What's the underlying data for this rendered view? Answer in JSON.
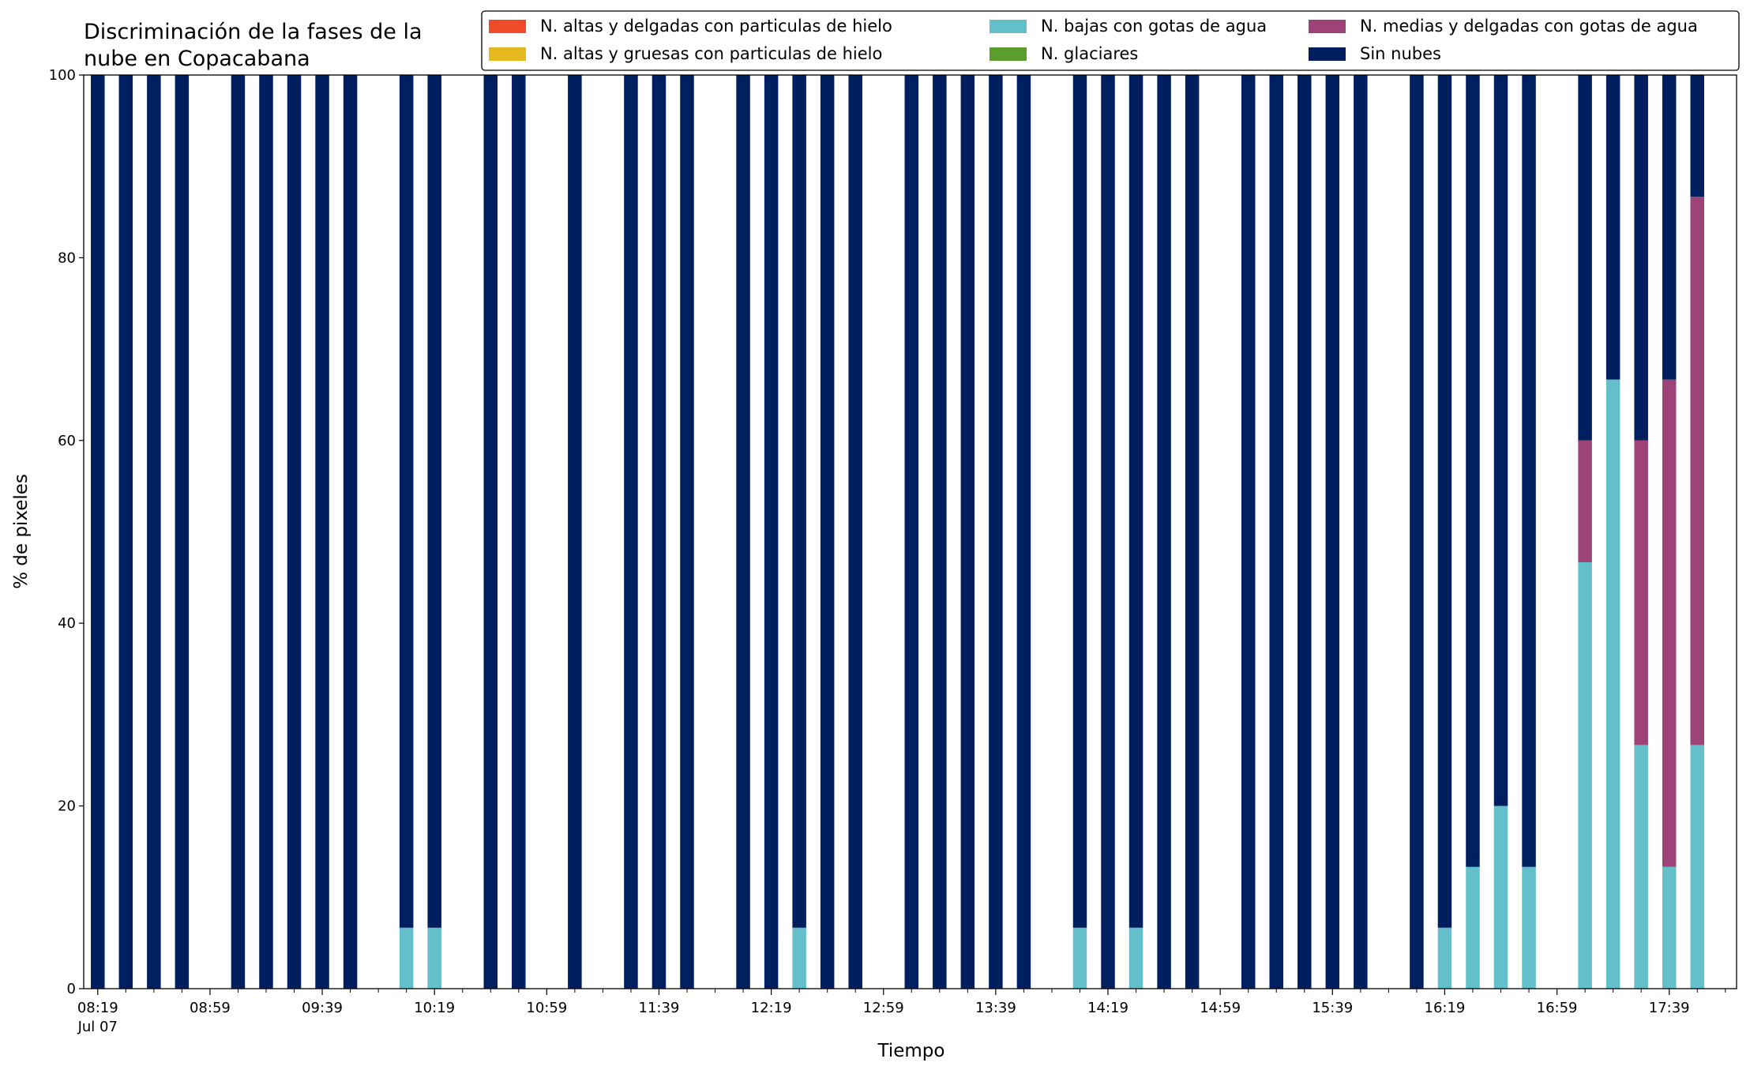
{
  "chart_data": {
    "type": "stacked_bar",
    "title": [
      "Discriminación de la fases de la",
      "nube en Copacabana"
    ],
    "xlabel": "Tiempo",
    "ylabel": "% de pixeles",
    "x_date": "Jul 07",
    "x": [
      "08:19",
      "08:29",
      "08:39",
      "08:49",
      "09:09",
      "09:19",
      "09:29",
      "09:39",
      "09:49",
      "10:09",
      "10:19",
      "10:39",
      "10:49",
      "11:09",
      "11:29",
      "11:39",
      "11:49",
      "12:09",
      "12:19",
      "12:29",
      "12:39",
      "12:49",
      "13:09",
      "13:19",
      "13:29",
      "13:39",
      "13:49",
      "14:09",
      "14:19",
      "14:29",
      "14:39",
      "14:49",
      "15:09",
      "15:19",
      "15:29",
      "15:39",
      "15:49",
      "16:09",
      "16:19",
      "16:29",
      "16:39",
      "16:49",
      "17:09",
      "17:19",
      "17:29",
      "17:39",
      "17:49"
    ],
    "xlim": [
      "08:14",
      "18:03"
    ],
    "xticks": [
      "08:19",
      "08:59",
      "09:39",
      "10:19",
      "10:59",
      "11:39",
      "12:19",
      "12:59",
      "13:39",
      "14:19",
      "14:59",
      "15:39",
      "16:19",
      "16:59",
      "17:39"
    ],
    "xminorticks": [
      "08:29",
      "08:39",
      "08:49",
      "09:09",
      "09:19",
      "09:29",
      "09:49",
      "09:59",
      "10:09",
      "10:29",
      "10:39",
      "10:49",
      "11:09",
      "11:19",
      "11:29",
      "11:49",
      "11:59",
      "12:09",
      "12:29",
      "12:39",
      "12:49",
      "13:09",
      "13:19",
      "13:29",
      "13:49",
      "13:59",
      "14:09",
      "14:29",
      "14:39",
      "14:49",
      "15:09",
      "15:19",
      "15:29",
      "15:49",
      "15:59",
      "16:09",
      "16:29",
      "16:39",
      "16:49",
      "17:09",
      "17:19",
      "17:29",
      "17:49",
      "17:59"
    ],
    "ylim": [
      0,
      100
    ],
    "yticks": [
      0,
      20,
      40,
      60,
      80,
      100
    ],
    "series": [
      {
        "name": "N. altas y delgadas con particulas de hielo",
        "color": "#ee4b2b",
        "values": [
          0,
          0,
          0,
          0,
          0,
          0,
          0,
          0,
          0,
          0,
          0,
          0,
          0,
          0,
          0,
          0,
          0,
          0,
          0,
          0,
          0,
          0,
          0,
          0,
          0,
          0,
          0,
          0,
          0,
          0,
          0,
          0,
          0,
          0,
          0,
          0,
          0,
          0,
          0,
          0,
          0,
          0,
          0,
          0,
          0,
          0,
          0
        ]
      },
      {
        "name": "N. altas y gruesas con particulas de hielo",
        "color": "#e6b91e",
        "values": [
          0,
          0,
          0,
          0,
          0,
          0,
          0,
          0,
          0,
          0,
          0,
          0,
          0,
          0,
          0,
          0,
          0,
          0,
          0,
          0,
          0,
          0,
          0,
          0,
          0,
          0,
          0,
          0,
          0,
          0,
          0,
          0,
          0,
          0,
          0,
          0,
          0,
          0,
          0,
          0,
          0,
          0,
          0,
          0,
          0,
          0,
          0
        ]
      },
      {
        "name": "N. bajas con gotas de agua",
        "color": "#63bfca",
        "values": [
          0,
          0,
          0,
          0,
          0,
          0,
          0,
          0,
          0,
          6.67,
          6.67,
          0,
          0,
          0,
          0,
          0,
          0,
          0,
          0,
          6.67,
          0,
          0,
          0,
          0,
          0,
          0,
          0,
          6.67,
          0,
          6.67,
          0,
          0,
          0,
          0,
          0,
          0,
          0,
          0,
          6.67,
          13.33,
          20,
          13.33,
          46.67,
          66.67,
          26.67,
          13.33,
          26.67
        ]
      },
      {
        "name": "N. glaciares",
        "color": "#5c9e2e",
        "values": [
          0,
          0,
          0,
          0,
          0,
          0,
          0,
          0,
          0,
          0,
          0,
          0,
          0,
          0,
          0,
          0,
          0,
          0,
          0,
          0,
          0,
          0,
          0,
          0,
          0,
          0,
          0,
          0,
          0,
          0,
          0,
          0,
          0,
          0,
          0,
          0,
          0,
          0,
          0,
          0,
          0,
          0,
          0,
          0,
          0,
          0,
          0
        ]
      },
      {
        "name": "N. medias y delgadas con gotas de agua",
        "color": "#9e4377",
        "values": [
          0,
          0,
          0,
          0,
          0,
          0,
          0,
          0,
          0,
          0,
          0,
          0,
          0,
          0,
          0,
          0,
          0,
          0,
          0,
          0,
          0,
          0,
          0,
          0,
          0,
          0,
          0,
          0,
          0,
          0,
          0,
          0,
          0,
          0,
          0,
          0,
          0,
          0,
          0,
          0,
          0,
          0,
          13.33,
          0,
          33.33,
          53.33,
          60
        ]
      },
      {
        "name": "Sin nubes",
        "color": "#001f5f",
        "values": [
          100,
          100,
          100,
          100,
          100,
          100,
          100,
          100,
          100,
          93.33,
          93.33,
          100,
          100,
          100,
          100,
          100,
          100,
          100,
          100,
          93.33,
          100,
          100,
          100,
          100,
          100,
          100,
          100,
          93.33,
          100,
          93.33,
          100,
          100,
          100,
          100,
          100,
          100,
          100,
          100,
          93.33,
          86.67,
          80,
          86.67,
          40,
          33.33,
          40,
          33.33,
          13.33
        ]
      }
    ]
  }
}
